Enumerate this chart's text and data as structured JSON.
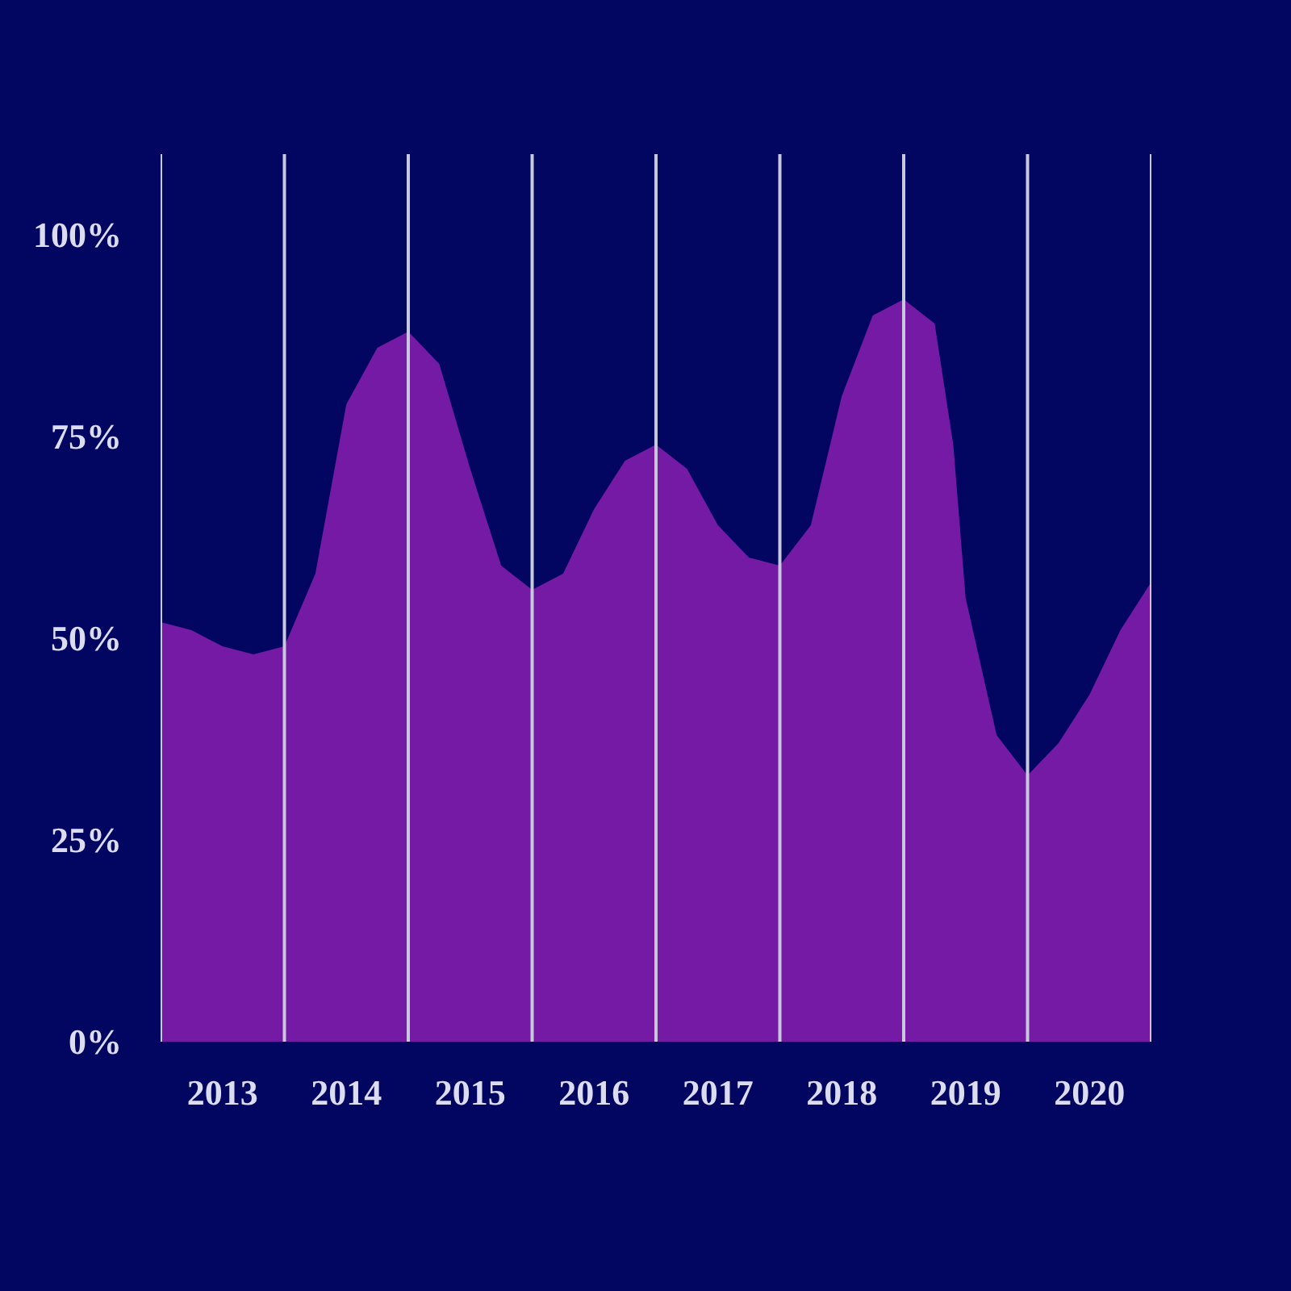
{
  "chart_data": {
    "type": "area",
    "x": [
      2012.5,
      2012.75,
      2013,
      2013.25,
      2013.5,
      2013.75,
      2014,
      2014.25,
      2014.5,
      2014.75,
      2015,
      2015.25,
      2015.5,
      2015.75,
      2016,
      2016.25,
      2016.5,
      2016.75,
      2017,
      2017.25,
      2017.5,
      2017.75,
      2018,
      2018.25,
      2018.5,
      2018.75,
      2018.9,
      2019,
      2019.25,
      2019.5,
      2019.75,
      2020,
      2020.25,
      2020.5
    ],
    "values": [
      52,
      51,
      49,
      48,
      49,
      58,
      79,
      86,
      88,
      84,
      71,
      59,
      56,
      58,
      66,
      72,
      74,
      71,
      64,
      60,
      59,
      64,
      80,
      90,
      92,
      89,
      74,
      55,
      38,
      33,
      37,
      43,
      51,
      57
    ],
    "color": "#8a1fb0",
    "xlim": [
      2012.5,
      2020.5
    ],
    "ylim": [
      0,
      110
    ],
    "xticks": [
      2013,
      2014,
      2015,
      2016,
      2017,
      2018,
      2019,
      2020
    ],
    "yticks": [
      {
        "value": 0,
        "label": "0%"
      },
      {
        "value": 25,
        "label": "25%"
      },
      {
        "value": 50,
        "label": "50%"
      },
      {
        "value": 75,
        "label": "75%"
      },
      {
        "value": 100,
        "label": "100%"
      }
    ],
    "ref_lines": [
      {
        "axis": "x",
        "value": 2012.5,
        "color": "#c8c8dc"
      },
      {
        "axis": "x",
        "value": 2013.5,
        "color": "#c8c8dc"
      },
      {
        "axis": "x",
        "value": 2014.5,
        "color": "#c8c8dc"
      },
      {
        "axis": "x",
        "value": 2015.5,
        "color": "#c8c8dc"
      },
      {
        "axis": "x",
        "value": 2016.5,
        "color": "#c8c8dc"
      },
      {
        "axis": "x",
        "value": 2017.5,
        "color": "#c8c8dc"
      },
      {
        "axis": "x",
        "value": 2018.5,
        "color": "#c8c8dc"
      },
      {
        "axis": "x",
        "value": 2019.5,
        "color": "#c8c8dc"
      },
      {
        "axis": "x",
        "value": 2020.5,
        "color": "#c8c8dc"
      }
    ]
  }
}
